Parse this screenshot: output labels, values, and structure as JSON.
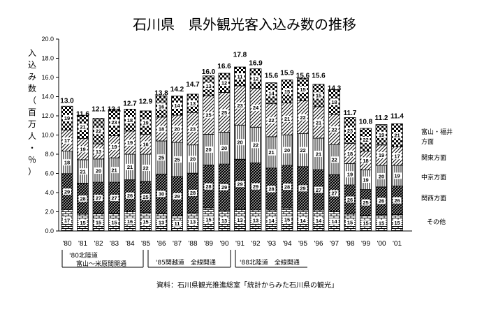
{
  "chart_data": {
    "type": "bar",
    "stacked": true,
    "title": "石川県　県外観光客入込み数の推移",
    "ylabel": "入込み数（百万人・％）",
    "ylim": [
      0,
      20
    ],
    "yticks": [
      "0.0",
      "2.0",
      "4.0",
      "6.0",
      "8.0",
      "10.0",
      "12.0",
      "14.0",
      "16.0",
      "18.0",
      "20.0"
    ],
    "grid": false,
    "legend_position": "right, beside bars",
    "categories": [
      "'80",
      "'81",
      "'82",
      "'83",
      "'84",
      "'85",
      "'86",
      "'87",
      "'88",
      "'89",
      "'90",
      "'91",
      "'92",
      "'93",
      "'94",
      "'95",
      "'96",
      "'97",
      "'98",
      "'99",
      "'00",
      "'01"
    ],
    "totals": [
      13.0,
      11.6,
      12.1,
      12.1,
      12.7,
      12.9,
      13.8,
      14.2,
      14.7,
      16.0,
      16.6,
      17.8,
      16.9,
      15.6,
      15.9,
      15.6,
      15.6,
      14.3,
      11.7,
      10.8,
      11.2,
      11.4
    ],
    "total_labels": [
      "13.0",
      "11.6",
      "12.1",
      "12.1",
      "12.7",
      "12.9",
      "13.8",
      "14.2",
      "14.7",
      "16.0",
      "16.6",
      "17.8",
      "16.9",
      "15.6",
      "15.9",
      "15.6",
      "15.6",
      "14.3",
      "11.7",
      "10.8",
      "11.2",
      "11.4"
    ],
    "series": [
      {
        "name": "その他",
        "pattern": "bricks",
        "percent": [
          17,
          15,
          15,
          15,
          16,
          15,
          13,
          11,
          13,
          15,
          13,
          13,
          13,
          14,
          15,
          14,
          14,
          14,
          15,
          15,
          15,
          15
        ]
      },
      {
        "name": "関西方面",
        "pattern": "hatch-dense",
        "percent": [
          29,
          28,
          27,
          27,
          26,
          25,
          30,
          29,
          28,
          28,
          29,
          29,
          29,
          28,
          28,
          29,
          27,
          27,
          26,
          25,
          26,
          26
        ]
      },
      {
        "name": "中京方面",
        "pattern": "vertical",
        "percent": [
          18,
          21,
          20,
          21,
          21,
          22,
          25,
          25,
          20,
          20,
          20,
          20,
          22,
          21,
          20,
          22,
          21,
          22,
          19,
          19,
          20,
          19
        ]
      },
      {
        "name": "関東方面",
        "pattern": "diagonal",
        "percent": [
          17,
          19,
          13,
          19,
          19,
          16,
          18,
          20,
          23,
          25,
          25,
          23,
          24,
          22,
          21,
          22,
          21,
          22,
          18,
          18,
          19,
          17
        ]
      },
      {
        "name": "富山・福井方面",
        "pattern": "check",
        "percent": [
          19,
          21,
          22,
          23,
          18,
          19,
          16,
          14,
          13,
          13,
          12,
          11,
          12,
          14,
          15,
          15,
          15,
          18,
          23,
          22,
          19,
          21
        ]
      }
    ],
    "legend": [
      "富山・福井",
      "方面",
      "関東方面",
      "中京方面",
      "関西方面",
      "その他"
    ]
  },
  "notes": {
    "note1_line1": "'80北陸道",
    "note1_line2": "富山～米原間開通",
    "note2": "'85関越道　全線開通",
    "note3": "'88北陸道　全線開通"
  },
  "source": "資料：石川県観光推進総室「統計からみた石川県の観光」"
}
